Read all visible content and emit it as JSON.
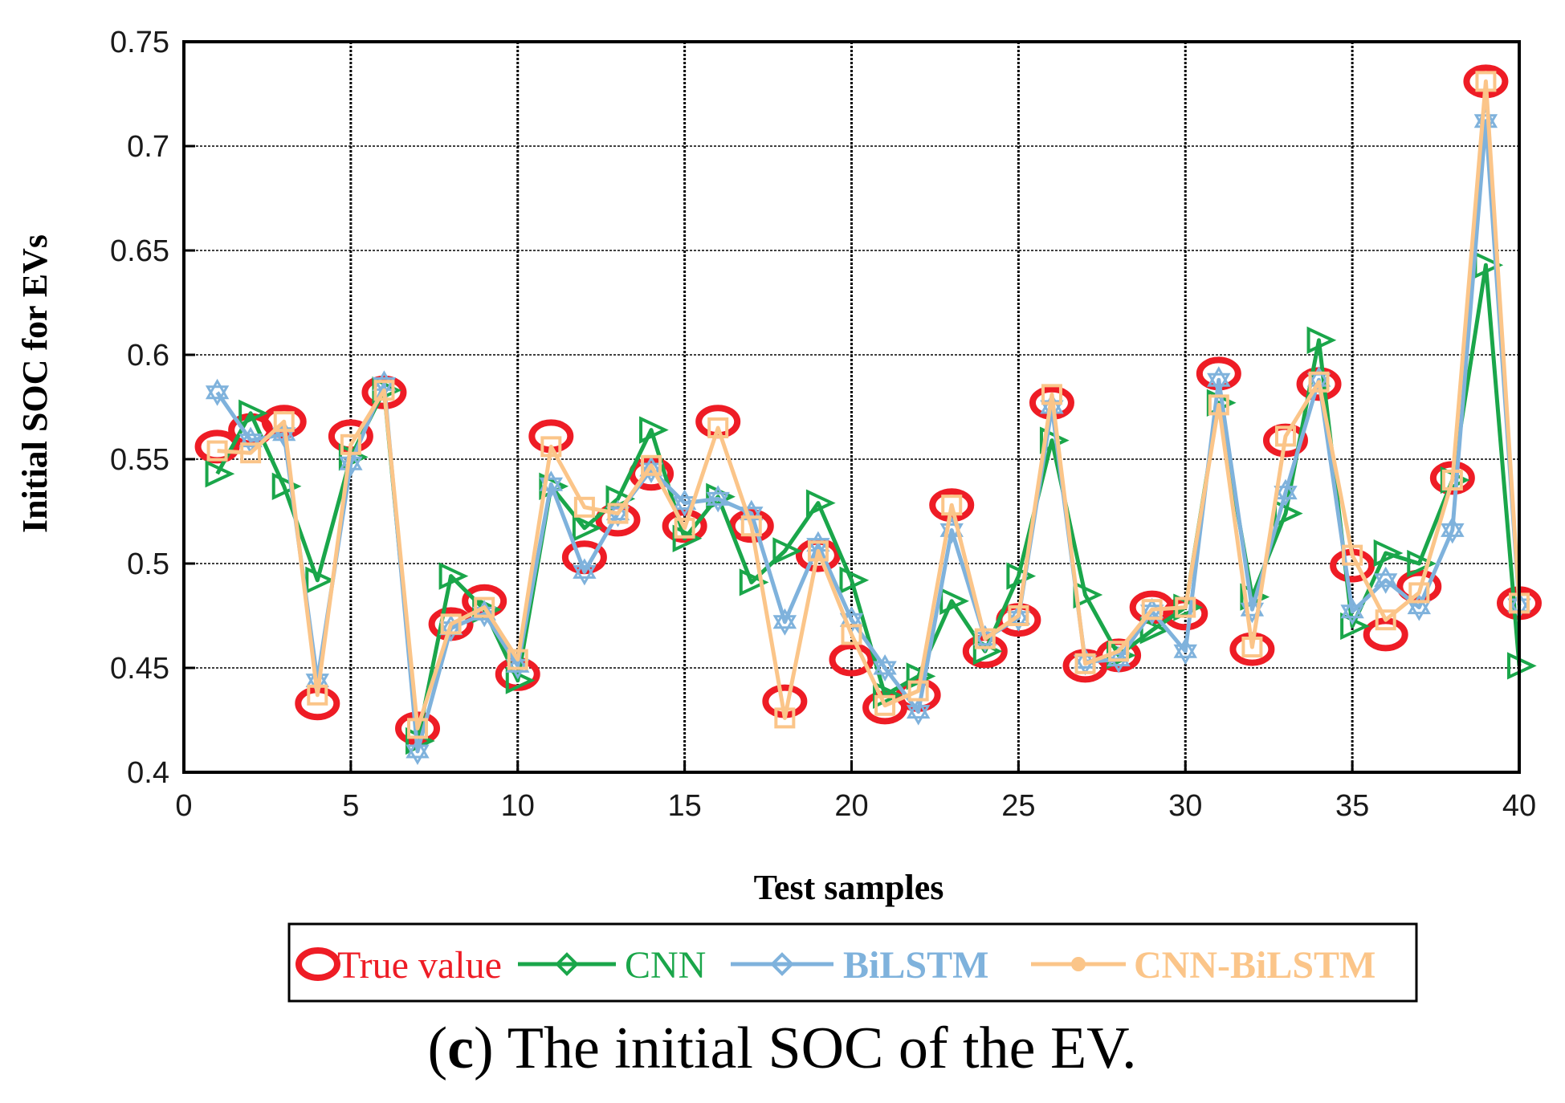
{
  "chart_data": {
    "type": "line",
    "title": "",
    "xlabel": "Test samples",
    "ylabel": "Initial SOC for EVs",
    "xlim": [
      0,
      40
    ],
    "ylim": [
      0.4,
      0.75
    ],
    "xticks": [
      0,
      5,
      10,
      15,
      20,
      25,
      30,
      35,
      40
    ],
    "yticks": [
      0.4,
      0.45,
      0.5,
      0.55,
      0.6,
      0.65,
      0.7,
      0.75
    ],
    "xtick_labels": [
      "0",
      "5",
      "10",
      "15",
      "20",
      "25",
      "30",
      "35",
      "40"
    ],
    "ytick_labels": [
      "0.4",
      "0.45",
      "0.5",
      "0.55",
      "0.6",
      "0.65",
      "0.7",
      "0.75"
    ],
    "grid": true,
    "legend_position": "bottom",
    "x": [
      1,
      2,
      3,
      4,
      5,
      6,
      7,
      8,
      9,
      10,
      11,
      12,
      13,
      14,
      15,
      16,
      17,
      18,
      19,
      20,
      21,
      22,
      23,
      24,
      25,
      26,
      27,
      28,
      29,
      30,
      31,
      32,
      33,
      34,
      35,
      36,
      37,
      38,
      39,
      40
    ],
    "series": [
      {
        "name": "True value",
        "color": "#ee1c25",
        "marker": "circle",
        "line": false,
        "values": [
          0.556,
          0.564,
          0.568,
          0.433,
          0.561,
          0.582,
          0.421,
          0.471,
          0.482,
          0.447,
          0.561,
          0.503,
          0.521,
          0.543,
          0.518,
          0.568,
          0.518,
          0.434,
          0.504,
          0.454,
          0.431,
          0.437,
          0.528,
          0.458,
          0.473,
          0.577,
          0.451,
          0.456,
          0.479,
          0.476,
          0.591,
          0.459,
          0.559,
          0.586,
          0.499,
          0.466,
          0.489,
          0.541,
          0.731,
          0.481
        ]
      },
      {
        "name": "CNN",
        "color": "#1aa64a",
        "marker": "triangle-right",
        "line": true,
        "values": [
          0.543,
          0.572,
          0.537,
          0.492,
          0.551,
          0.583,
          0.415,
          0.494,
          0.478,
          0.444,
          0.537,
          0.517,
          0.531,
          0.564,
          0.512,
          0.532,
          0.491,
          0.506,
          0.529,
          0.492,
          0.437,
          0.446,
          0.482,
          0.458,
          0.494,
          0.559,
          0.485,
          0.456,
          0.468,
          0.479,
          0.577,
          0.484,
          0.524,
          0.607,
          0.47,
          0.505,
          0.5,
          0.54,
          0.643,
          0.451
        ]
      },
      {
        "name": "BiLSTM",
        "color": "#7fb2dc",
        "marker": "hexagram",
        "line": true,
        "values": [
          0.582,
          0.559,
          0.562,
          0.444,
          0.548,
          0.586,
          0.41,
          0.469,
          0.476,
          0.451,
          0.538,
          0.496,
          0.524,
          0.545,
          0.529,
          0.531,
          0.524,
          0.472,
          0.509,
          0.473,
          0.45,
          0.429,
          0.516,
          0.464,
          0.474,
          0.575,
          0.453,
          0.454,
          0.477,
          0.458,
          0.588,
          0.478,
          0.534,
          0.588,
          0.477,
          0.492,
          0.479,
          0.516,
          0.712,
          0.48
        ]
      },
      {
        "name": "CNN-BiLSTM",
        "color": "#fbc589",
        "marker": "square",
        "line": true,
        "values": [
          0.554,
          0.553,
          0.568,
          0.437,
          0.557,
          0.583,
          0.421,
          0.471,
          0.479,
          0.454,
          0.556,
          0.527,
          0.524,
          0.547,
          0.517,
          0.565,
          0.518,
          0.426,
          0.506,
          0.466,
          0.432,
          0.439,
          0.528,
          0.464,
          0.475,
          0.581,
          0.452,
          0.458,
          0.478,
          0.479,
          0.576,
          0.46,
          0.561,
          0.587,
          0.504,
          0.473,
          0.486,
          0.54,
          0.731,
          0.481
        ]
      }
    ]
  },
  "legend": {
    "items": [
      {
        "label": "True value",
        "color": "#ee1c25"
      },
      {
        "label": "CNN",
        "color": "#1aa64a"
      },
      {
        "label": "BiLSTM",
        "color": "#7fb2dc"
      },
      {
        "label": "CNN-BiLSTM",
        "color": "#fbc589"
      }
    ]
  },
  "caption": {
    "prefix": "(",
    "letter": "c",
    "text": ") The initial SOC of the EV."
  }
}
